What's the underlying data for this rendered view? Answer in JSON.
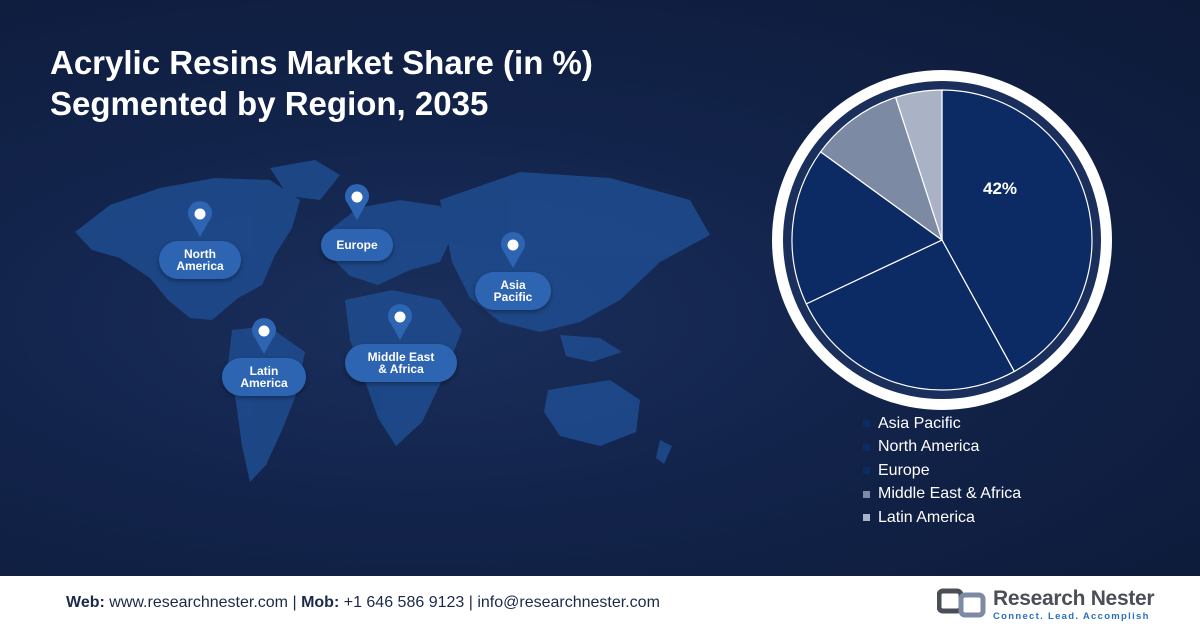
{
  "title": {
    "line1": "Acrylic Resins Market Share (in %)",
    "line2": "Segmented by Region, 2035"
  },
  "map": {
    "regions": [
      {
        "name": "North America"
      },
      {
        "name": "Europe"
      },
      {
        "name": "Asia Pacific"
      },
      {
        "name": "Latin America"
      },
      {
        "name": "Middle East & Africa"
      }
    ],
    "label_color": "#2e65b3",
    "land_color": "#1f4c8f"
  },
  "chart_data": {
    "type": "pie",
    "title": "",
    "categories": [
      "Asia Pacific",
      "North America",
      "Europe",
      "Middle East & Africa",
      "Latin America"
    ],
    "values": [
      42,
      26,
      17,
      10,
      5
    ],
    "colors": [
      "#0c2a63",
      "#0c2a63",
      "#0c2a63",
      "#7d8aa4",
      "#aab3c5"
    ],
    "data_labels": [
      {
        "category": "Asia Pacific",
        "text": "42%"
      }
    ],
    "legend_position": "bottom"
  },
  "footer": {
    "web_label": "Web:",
    "web": "www.researchnester.com",
    "sep1": "|",
    "mob_label": "Mob:",
    "mob": "+1 646 586 9123",
    "sep2": "|",
    "email": "info@researchnester.com",
    "brand_name": "Research Nester",
    "brand_tagline": "Connect. Lead. Accomplish"
  }
}
